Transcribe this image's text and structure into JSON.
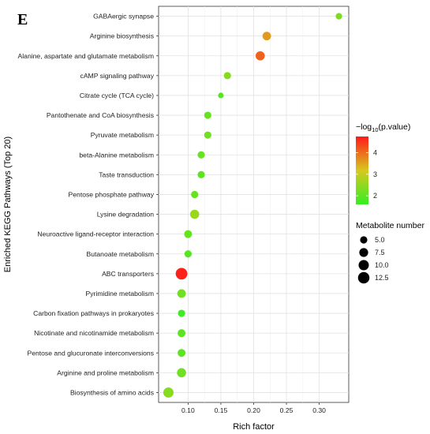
{
  "panel_label": "E",
  "chart_data": {
    "type": "scatter",
    "xlabel": "Rich factor",
    "ylabel": "Enriched KEGG Pathways (Top 20)",
    "xlim": [
      0.055,
      0.345
    ],
    "x_ticks": [
      0.1,
      0.15,
      0.2,
      0.25,
      0.3
    ],
    "x_tick_labels": [
      "0.10",
      "0.15",
      "0.20",
      "0.25",
      "0.30"
    ],
    "grid": true,
    "legend_position": "right",
    "pathways": [
      {
        "name": "GABAergic synapse",
        "rich_factor": 0.33,
        "neg_log10_p": 2.3,
        "metabolite_number": 4
      },
      {
        "name": "Arginine biosynthesis",
        "rich_factor": 0.22,
        "neg_log10_p": 3.6,
        "metabolite_number": 7
      },
      {
        "name": "Alanine, aspartate and glutamate metabolism",
        "rich_factor": 0.21,
        "neg_log10_p": 4.1,
        "metabolite_number": 8
      },
      {
        "name": "cAMP signaling pathway",
        "rich_factor": 0.16,
        "neg_log10_p": 2.4,
        "metabolite_number": 5
      },
      {
        "name": "Citrate cycle (TCA cycle)",
        "rich_factor": 0.15,
        "neg_log10_p": 1.9,
        "metabolite_number": 3
      },
      {
        "name": "Pantothenate and CoA biosynthesis",
        "rich_factor": 0.13,
        "neg_log10_p": 2.1,
        "metabolite_number": 5
      },
      {
        "name": "Pyruvate metabolism",
        "rich_factor": 0.13,
        "neg_log10_p": 2.2,
        "metabolite_number": 5
      },
      {
        "name": "beta-Alanine metabolism",
        "rich_factor": 0.12,
        "neg_log10_p": 2.1,
        "metabolite_number": 5
      },
      {
        "name": "Taste transduction",
        "rich_factor": 0.12,
        "neg_log10_p": 2.0,
        "metabolite_number": 5
      },
      {
        "name": "Pentose phosphate pathway",
        "rich_factor": 0.11,
        "neg_log10_p": 2.1,
        "metabolite_number": 5
      },
      {
        "name": "Lysine degradation",
        "rich_factor": 0.11,
        "neg_log10_p": 2.6,
        "metabolite_number": 8
      },
      {
        "name": "Neuroactive ligand-receptor interaction",
        "rich_factor": 0.1,
        "neg_log10_p": 2.1,
        "metabolite_number": 6
      },
      {
        "name": "Butanoate metabolism",
        "rich_factor": 0.1,
        "neg_log10_p": 1.9,
        "metabolite_number": 5
      },
      {
        "name": "ABC transporters",
        "rich_factor": 0.09,
        "neg_log10_p": 4.7,
        "metabolite_number": 13
      },
      {
        "name": "Pyrimidine metabolism",
        "rich_factor": 0.09,
        "neg_log10_p": 2.2,
        "metabolite_number": 7
      },
      {
        "name": "Carbon fixation pathways in prokaryotes",
        "rich_factor": 0.09,
        "neg_log10_p": 1.7,
        "metabolite_number": 5
      },
      {
        "name": "Nicotinate and nicotinamide metabolism",
        "rich_factor": 0.09,
        "neg_log10_p": 2.0,
        "metabolite_number": 6
      },
      {
        "name": "Pentose and glucuronate interconversions",
        "rich_factor": 0.09,
        "neg_log10_p": 2.0,
        "metabolite_number": 6
      },
      {
        "name": "Arginine and proline metabolism",
        "rich_factor": 0.09,
        "neg_log10_p": 2.2,
        "metabolite_number": 8
      },
      {
        "name": "Biosynthesis of amino acids",
        "rich_factor": 0.07,
        "neg_log10_p": 2.4,
        "metabolite_number": 10
      }
    ],
    "color_legend": {
      "title_prefix": "−log",
      "title_sub": "10",
      "title_suffix": "(p.value)",
      "range": [
        1.6,
        4.75
      ],
      "ticks": [
        2,
        3,
        4
      ],
      "tick_labels": [
        "2",
        "3",
        "4"
      ],
      "low_color": "#33ee22",
      "high_color": "#ff1a1a"
    },
    "size_legend": {
      "title": "Metabolite number",
      "values": [
        5.0,
        7.5,
        10.0,
        12.5
      ],
      "labels": [
        "5.0",
        "7.5",
        "10.0",
        "12.5"
      ]
    }
  }
}
